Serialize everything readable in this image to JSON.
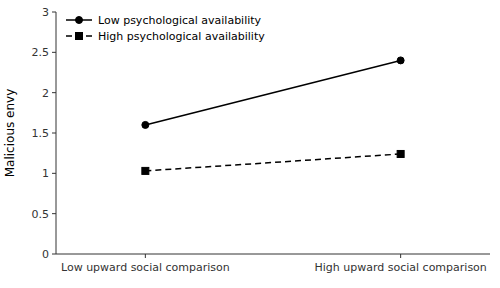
{
  "chart_data": {
    "type": "line",
    "categories": [
      "Low upward social comparison",
      "High upward social comparison"
    ],
    "series": [
      {
        "name": "Low psychological availability",
        "values": [
          1.6,
          2.4
        ],
        "color": "#000000",
        "marker": "circle",
        "line_style": "solid"
      },
      {
        "name": "High psychological availability",
        "values": [
          1.03,
          1.24
        ],
        "color": "#000000",
        "marker": "square",
        "line_style": "dashed"
      }
    ],
    "ylabel": "Malicious envy",
    "ylim": [
      0,
      3.0
    ],
    "yticks": [
      0,
      0.5,
      1,
      1.5,
      2,
      2.5,
      3
    ],
    "grid": false,
    "legend": "upper-left"
  }
}
